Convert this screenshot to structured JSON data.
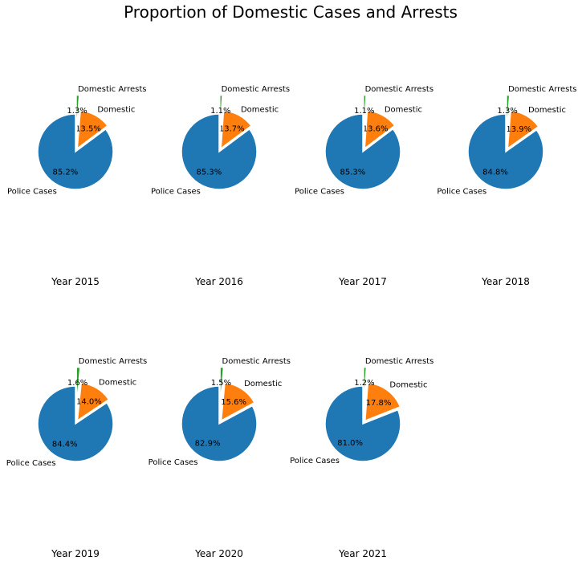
{
  "title": "Proportion of Domestic Cases and Arrests",
  "chart_data": [
    {
      "type": "pie",
      "title": "Year 2015",
      "labels": [
        "Police Cases",
        "Domestic",
        "Domestic Arrests"
      ],
      "values": [
        85.2,
        13.5,
        1.3
      ],
      "autopct": [
        "85.2%",
        "13.5%",
        "1.3%"
      ],
      "colors": [
        "#1f77b4",
        "#ff7f0e",
        "#2ca02c"
      ]
    },
    {
      "type": "pie",
      "title": "Year 2016",
      "labels": [
        "Police Cases",
        "Domestic",
        "Domestic Arrests"
      ],
      "values": [
        85.3,
        13.7,
        1.1
      ],
      "autopct": [
        "85.3%",
        "13.7%",
        "1.1%"
      ],
      "colors": [
        "#1f77b4",
        "#ff7f0e",
        "#2ca02c"
      ]
    },
    {
      "type": "pie",
      "title": "Year 2017",
      "labels": [
        "Police Cases",
        "Domestic",
        "Domestic Arrests"
      ],
      "values": [
        85.3,
        13.6,
        1.1
      ],
      "autopct": [
        "85.3%",
        "13.6%",
        "1.1%"
      ],
      "colors": [
        "#1f77b4",
        "#ff7f0e",
        "#2ca02c"
      ]
    },
    {
      "type": "pie",
      "title": "Year 2018",
      "labels": [
        "Police Cases",
        "Domestic",
        "Domestic Arrests"
      ],
      "values": [
        84.8,
        13.9,
        1.3
      ],
      "autopct": [
        "84.8%",
        "13.9%",
        "1.3%"
      ],
      "colors": [
        "#1f77b4",
        "#ff7f0e",
        "#2ca02c"
      ]
    },
    {
      "type": "pie",
      "title": "Year 2019",
      "labels": [
        "Police Cases",
        "Domestic",
        "Domestic Arrests"
      ],
      "values": [
        84.4,
        14.0,
        1.6
      ],
      "autopct": [
        "84.4%",
        "14.0%",
        "1.6%"
      ],
      "colors": [
        "#1f77b4",
        "#ff7f0e",
        "#2ca02c"
      ]
    },
    {
      "type": "pie",
      "title": "Year 2020",
      "labels": [
        "Police Cases",
        "Domestic",
        "Domestic Arrests"
      ],
      "values": [
        82.9,
        15.6,
        1.5
      ],
      "autopct": [
        "82.9%",
        "15.6%",
        "1.5%"
      ],
      "colors": [
        "#1f77b4",
        "#ff7f0e",
        "#2ca02c"
      ]
    },
    {
      "type": "pie",
      "title": "Year 2021",
      "labels": [
        "Police Cases",
        "Domestic",
        "Domestic Arrests"
      ],
      "values": [
        81.0,
        17.8,
        1.2
      ],
      "autopct": [
        "81.0%",
        "17.8%",
        "1.2%"
      ],
      "colors": [
        "#1f77b4",
        "#ff7f0e",
        "#2ca02c"
      ]
    }
  ]
}
